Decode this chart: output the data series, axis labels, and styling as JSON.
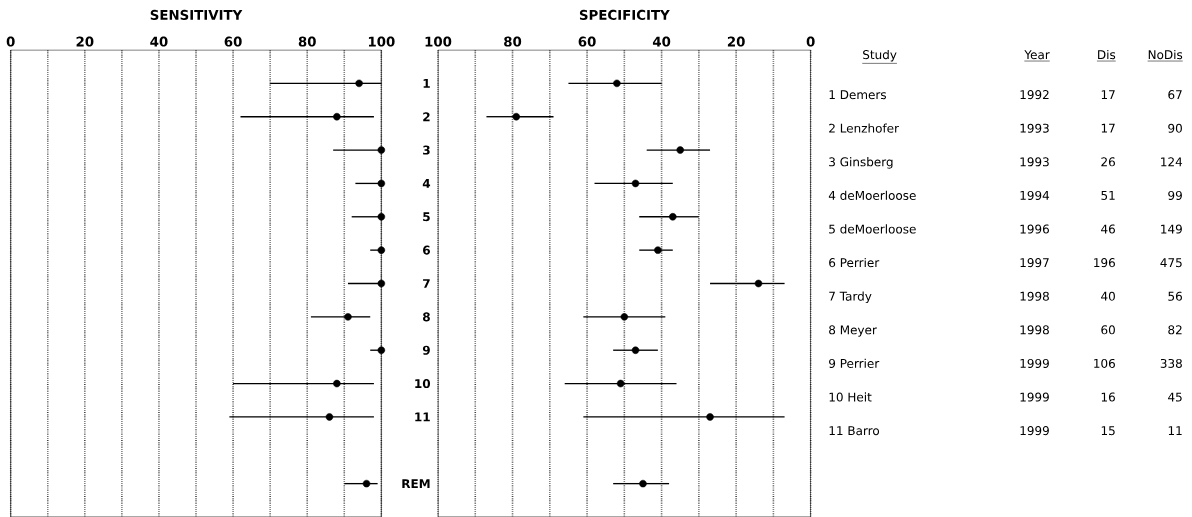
{
  "chart_data": [
    {
      "type": "scatter",
      "orientation": "horizontal",
      "title": "SENSITIVITY",
      "categories": [
        null,
        null,
        null,
        null,
        null,
        null,
        null,
        null,
        null,
        null,
        null,
        null,
        null
      ],
      "values": [
        94,
        88,
        100,
        100,
        100,
        100,
        100,
        91,
        100,
        88,
        86,
        null,
        96
      ],
      "errors": [
        [
          70,
          100
        ],
        [
          62,
          98
        ],
        [
          87,
          100
        ],
        [
          93,
          100
        ],
        [
          92,
          100
        ],
        [
          97,
          100
        ],
        [
          91,
          100
        ],
        [
          81,
          97
        ],
        [
          97,
          100
        ],
        [
          60,
          98
        ],
        [
          59,
          98
        ],
        null,
        [
          90,
          99
        ]
      ],
      "color": "#000000",
      "marker": "circle",
      "grid": "x",
      "xlim": [
        0,
        100
      ],
      "xticks": [
        0,
        {
          "value": 10,
          "label": null
        },
        20,
        {
          "value": 30,
          "label": null
        },
        40,
        {
          "value": 50,
          "label": null
        },
        60,
        {
          "value": 70,
          "label": null
        },
        80,
        {
          "value": 90,
          "label": null
        },
        100
      ]
    },
    {
      "type": "scatter",
      "orientation": "horizontal",
      "title": "SPECIFICITY",
      "categories": [
        "1",
        "2",
        "3",
        "4",
        "5",
        "6",
        "7",
        "8",
        "9",
        "10",
        "11",
        null,
        "REM"
      ],
      "values": [
        52,
        79,
        35,
        47,
        37,
        41,
        14,
        50,
        47,
        51,
        27,
        null,
        45
      ],
      "errors": [
        [
          40,
          65
        ],
        [
          69,
          87
        ],
        [
          27,
          44
        ],
        [
          37,
          58
        ],
        [
          30,
          46
        ],
        [
          37,
          46
        ],
        [
          7,
          27
        ],
        [
          39,
          61
        ],
        [
          41,
          53
        ],
        [
          36,
          66
        ],
        [
          7,
          61
        ],
        null,
        [
          38,
          53
        ]
      ],
      "color": "#000000",
      "marker": "circle",
      "grid": "x",
      "xlim": [
        100,
        0
      ],
      "xticks": [
        100,
        {
          "value": 90,
          "label": null
        },
        80,
        {
          "value": 70,
          "label": null
        },
        60,
        {
          "value": 50,
          "label": null
        },
        40,
        {
          "value": 30,
          "label": null
        },
        20,
        {
          "value": 10,
          "label": null
        },
        0
      ]
    },
    {
      "type": "other",
      "annotations": [
        "Study",
        "Year",
        "Dis",
        "NoDis",
        "1 Demers",
        "1992",
        "17",
        "67",
        "2 Lenzhofer",
        "1993",
        "17",
        "90",
        "3 Ginsberg",
        "1993",
        "26",
        "124",
        "4 deMoerloose",
        "1994",
        "51",
        "99",
        "5 deMoerloose",
        "1996",
        "46",
        "149",
        "6 Perrier",
        "1997",
        "196",
        "475",
        "7 Tardy",
        "1998",
        "40",
        "56",
        "8 Meyer",
        "1998",
        "60",
        "82",
        "9 Perrier",
        "1999",
        "106",
        "338",
        "10 Heit",
        "1999",
        "16",
        "45",
        "11 Barro",
        "1999",
        "15",
        "11"
      ]
    }
  ]
}
